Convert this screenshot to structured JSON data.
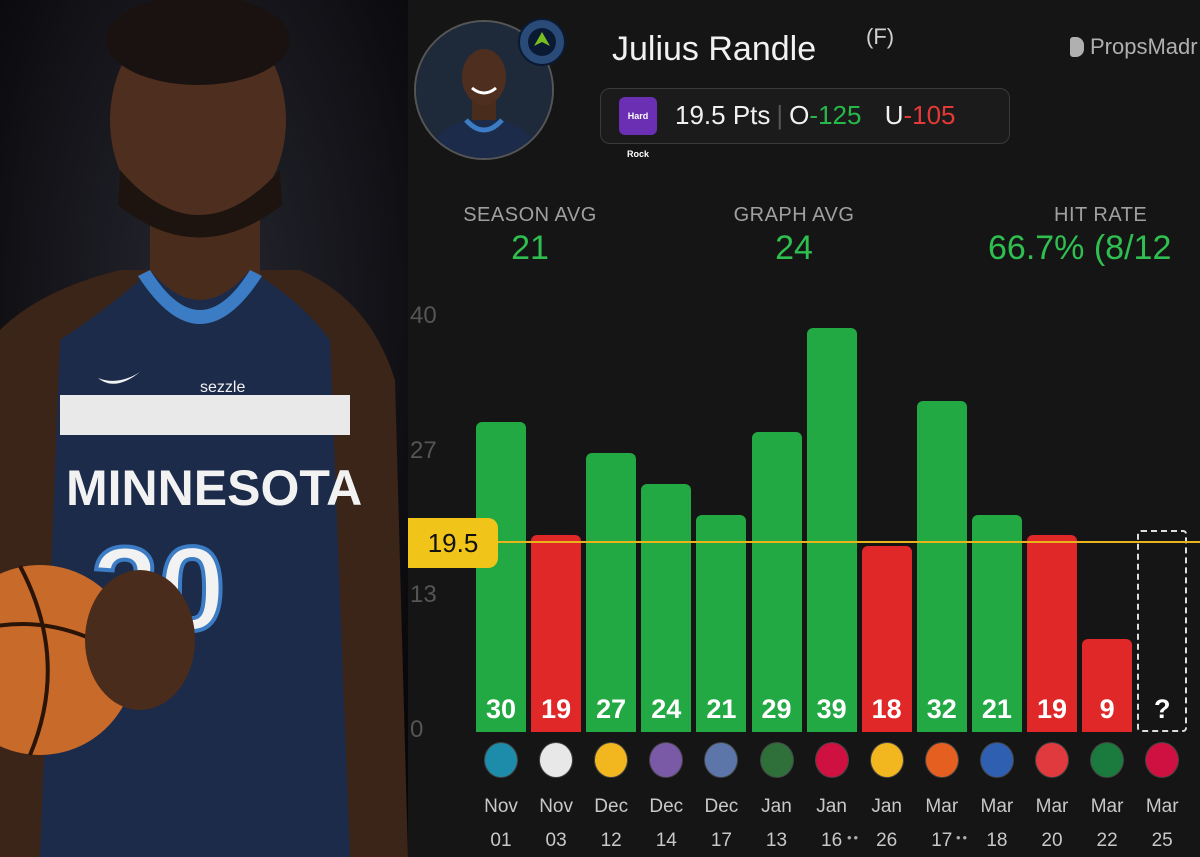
{
  "player": {
    "name": "Julius Randle",
    "position": "(F)",
    "line_text": "19.5 Pts",
    "over_prefix": "O",
    "over_odds": "-125",
    "under_prefix": "U",
    "under_odds": "-105"
  },
  "sportsbook_logo_text": "Hard Rock",
  "brand": {
    "name": "PropsMadr"
  },
  "photo": {
    "jersey_text": "MINNESOTA",
    "jersey_number": "30",
    "sponsor": "sezzle"
  },
  "stats": {
    "season_avg_label": "SEASON AVG",
    "season_avg_value": "21",
    "graph_avg_label": "GRAPH AVG",
    "graph_avg_value": "24",
    "hit_rate_label": "HIT RATE",
    "hit_rate_value": "66.7% (8/12"
  },
  "colors": {
    "over": "#23a944",
    "under": "#e02828",
    "line": "#f0c419"
  },
  "chart_data": {
    "type": "bar",
    "title": "",
    "xlabel": "",
    "ylabel": "",
    "ylim": [
      0,
      40
    ],
    "yticks": [
      "0",
      "13",
      "27",
      "40"
    ],
    "reference_line": {
      "value": 19.5,
      "label": "19.5"
    },
    "categories": [
      "Nov 01",
      "Nov 03",
      "Dec 12",
      "Dec 14",
      "Dec 17",
      "Jan 13",
      "Jan 16",
      "Jan 26",
      "Mar 17",
      "Mar 18",
      "Mar 20",
      "Mar 22",
      "Mar 25"
    ],
    "months": [
      "Nov",
      "Nov",
      "Dec",
      "Dec",
      "Dec",
      "Jan",
      "Jan",
      "Jan",
      "Mar",
      "Mar",
      "Mar",
      "Mar",
      "Mar"
    ],
    "days": [
      "01",
      "03",
      "12",
      "14",
      "17",
      "13",
      "16",
      "26",
      "17",
      "18",
      "20",
      "22",
      "25"
    ],
    "values": [
      30,
      19,
      27,
      24,
      21,
      29,
      39,
      18,
      32,
      21,
      19,
      9,
      null
    ],
    "labels": [
      "30",
      "19",
      "27",
      "24",
      "21",
      "29",
      "39",
      "18",
      "32",
      "21",
      "19",
      "9",
      "?"
    ],
    "opponents": [
      "hornets-logo-icon",
      "nets-logo-icon",
      "warriors-logo-icon",
      "kings-logo-icon",
      "grizzlies-logo-icon",
      "bucks-logo-icon",
      "rockets-logo-icon",
      "warriors-logo-icon",
      "suns-logo-icon",
      "jazz-logo-icon",
      "blazers-logo-icon",
      "celtics-logo-icon",
      "rockets-logo-icon"
    ],
    "opponent_colors": [
      "#1d8cab",
      "#e8e8e8",
      "#f2b71e",
      "#7a5aa6",
      "#5d76a9",
      "#2f6f3a",
      "#ce1141",
      "#f2b71e",
      "#e56020",
      "#2f5fb0",
      "#e03a3e",
      "#1b7a3e",
      "#ce1141"
    ],
    "grid": false
  }
}
